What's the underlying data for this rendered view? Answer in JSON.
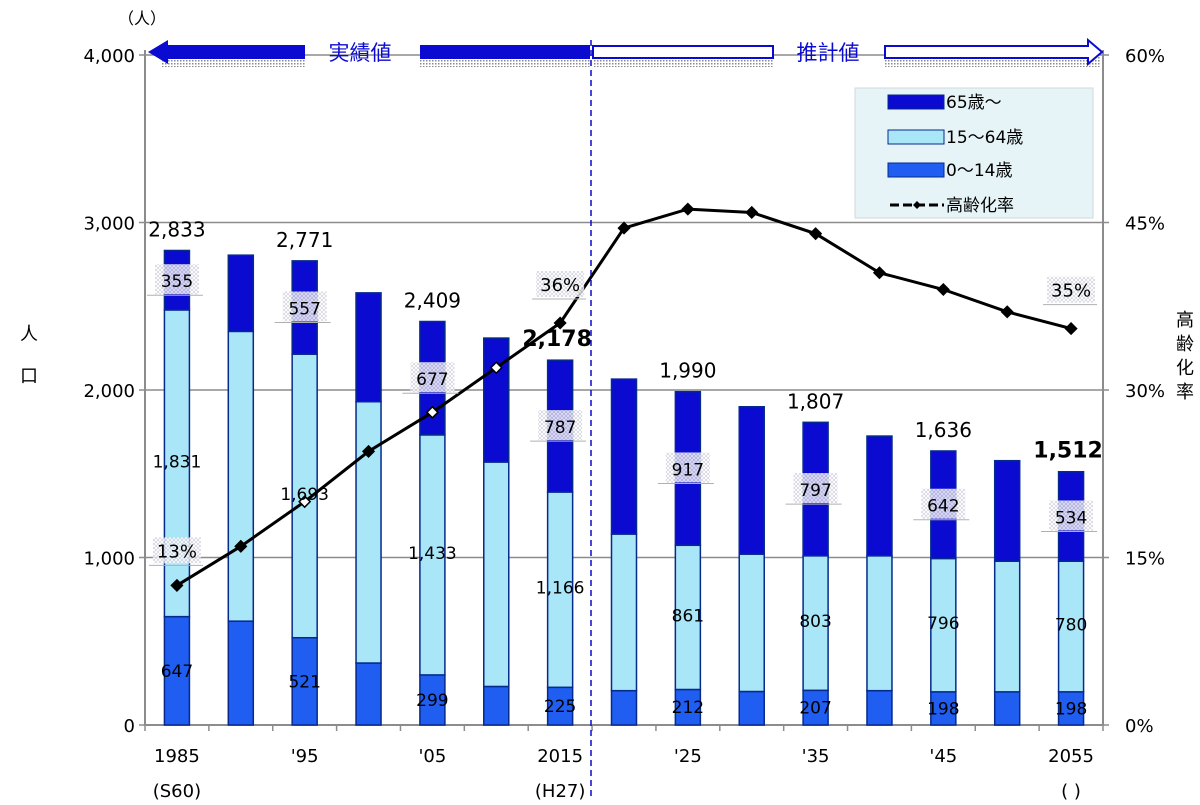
{
  "chart_data": {
    "type": "bar",
    "subtype": "stacked bar with line (secondary axis)",
    "unit_left": "（人）",
    "ylabel_left": "人口",
    "ylabel_right": "高齢化率",
    "ylim": [
      0,
      4000
    ],
    "ylim_right": [
      0,
      0.6
    ],
    "yticks_left": [
      "0",
      "1,000",
      "2,000",
      "3,000",
      "4,000"
    ],
    "yticks_right": [
      "0%",
      "15%",
      "30%",
      "45%",
      "60%"
    ],
    "grid": true,
    "legend_position": "top-right",
    "x": [
      "1985",
      "1990",
      "1995",
      "2000",
      "2005",
      "2010",
      "2015",
      "2020",
      "2025",
      "2030",
      "2035",
      "2040",
      "2045",
      "2050",
      "2055"
    ],
    "xtick_labels": [
      "1985",
      "",
      "'95",
      "",
      "'05",
      "",
      "2015",
      "",
      "'25",
      "",
      "'35",
      "",
      "'45",
      "",
      "2055"
    ],
    "xtick_sublabels": [
      "(S60)",
      "",
      "",
      "",
      "",
      "",
      "(H27)",
      "",
      "",
      "",
      "",
      "",
      "",
      "",
      "(       )"
    ],
    "period_labels": {
      "actual": "実績値",
      "projected": "推計値"
    },
    "legend": [
      "65歳～",
      "15～64歳",
      "0～14歳",
      "高齢化率"
    ],
    "series": [
      {
        "name": "0～14歳",
        "color": "#1f5ef0",
        "values": [
          647,
          620,
          521,
          370,
          299,
          230,
          225,
          205,
          212,
          200,
          207,
          205,
          198,
          198,
          198
        ]
      },
      {
        "name": "15～64歳",
        "color": "#a9e6f7",
        "values": [
          1831,
          1730,
          1693,
          1560,
          1433,
          1340,
          1166,
          935,
          861,
          820,
          803,
          805,
          796,
          780,
          780
        ]
      },
      {
        "name": "65歳～",
        "color": "#0a0ad0",
        "values": [
          355,
          455,
          557,
          650,
          677,
          740,
          787,
          925,
          917,
          880,
          797,
          715,
          642,
          600,
          534
        ]
      },
      {
        "name": "高齢化率",
        "type": "line",
        "color": "#000000",
        "values": [
          0.125,
          0.16,
          0.2,
          0.245,
          0.28,
          0.32,
          0.36,
          0.445,
          0.462,
          0.459,
          0.44,
          0.405,
          0.39,
          0.37,
          0.355
        ]
      }
    ],
    "total_labels": [
      {
        "index": 0,
        "label": "2,833"
      },
      {
        "index": 2,
        "label": "2,771"
      },
      {
        "index": 4,
        "label": "2,409"
      },
      {
        "index": 6,
        "label": "2,178",
        "bold": true
      },
      {
        "index": 8,
        "label": "1,990"
      },
      {
        "index": 10,
        "label": "1,807"
      },
      {
        "index": 12,
        "label": "1,636"
      },
      {
        "index": 14,
        "label": "1,512",
        "bold": true
      }
    ],
    "segment_labels": [
      {
        "index": 0,
        "young": "647",
        "working": "1,831",
        "elderly": "355"
      },
      {
        "index": 2,
        "young": "521",
        "working": "1,693",
        "elderly": "557"
      },
      {
        "index": 4,
        "young": "299",
        "working": "1,433",
        "elderly": "677"
      },
      {
        "index": 6,
        "young": "225",
        "working": "1,166",
        "elderly": "787"
      },
      {
        "index": 8,
        "young": "212",
        "working": "861",
        "elderly": "917"
      },
      {
        "index": 10,
        "young": "207",
        "working": "803",
        "elderly": "797"
      },
      {
        "index": 12,
        "young": "198",
        "working": "796",
        "elderly": "642"
      },
      {
        "index": 14,
        "young": "198",
        "working": "780",
        "elderly": "534"
      }
    ],
    "rate_labels": [
      {
        "index": 0,
        "label": "13%"
      },
      {
        "index": 6,
        "label": "36%"
      },
      {
        "index": 14,
        "label": "35%"
      }
    ]
  }
}
